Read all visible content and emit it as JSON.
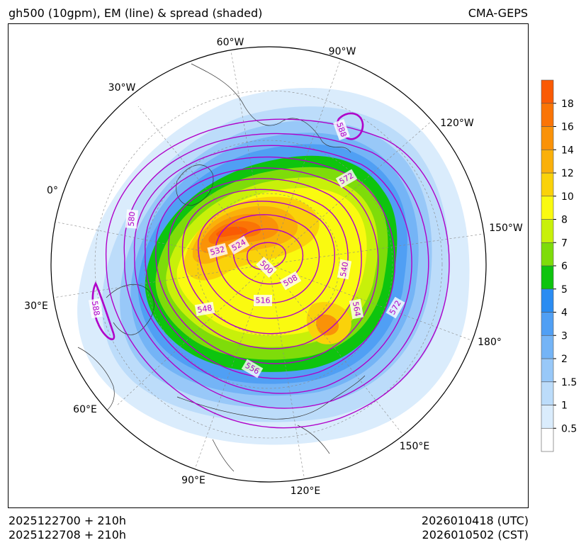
{
  "header": {
    "title_left": "gh500 (10gpm), EM (line) & spread (shaded)",
    "title_right": "CMA-GEPS"
  },
  "footer": {
    "init_utc": "2025122700 + 210h",
    "init_cst": "2025122708 + 210h",
    "valid_utc": "2026010418 (UTC)",
    "valid_cst": "2026010502 (CST)"
  },
  "map": {
    "projection": "north-polar-stereographic",
    "longitude_labels": [
      {
        "text": "60°W",
        "lon": -60
      },
      {
        "text": "90°W",
        "lon": -90
      },
      {
        "text": "30°W",
        "lon": -30
      },
      {
        "text": "120°W",
        "lon": -120
      },
      {
        "text": "0°",
        "lon": 0
      },
      {
        "text": "150°W",
        "lon": -150
      },
      {
        "text": "30°E",
        "lon": 30
      },
      {
        "text": "180°",
        "lon": 180
      },
      {
        "text": "60°E",
        "lon": 60
      },
      {
        "text": "150°E",
        "lon": 150
      },
      {
        "text": "90°E",
        "lon": 90
      },
      {
        "text": "120°E",
        "lon": 120
      }
    ],
    "contour_labels": [
      "588",
      "572",
      "580",
      "532",
      "524",
      "500",
      "508",
      "540",
      "588",
      "516",
      "548",
      "564",
      "572",
      "556"
    ],
    "contour_color": "#b000c8",
    "land_outline_color": "#333333"
  },
  "colorbar": {
    "ticks": [
      "0.5",
      "1",
      "1.5",
      "2",
      "3",
      "4",
      "5",
      "6",
      "7",
      "8",
      "10",
      "12",
      "14",
      "16",
      "18"
    ],
    "colors": [
      "#ffffff",
      "#daecfc",
      "#bcdcfa",
      "#98c8f8",
      "#74b4f6",
      "#509ff4",
      "#2a8cf2",
      "#0ec40e",
      "#7edc0a",
      "#c8f00a",
      "#fafa10",
      "#fad20a",
      "#fab00a",
      "#fa9208",
      "#fa7406",
      "#fa5a04"
    ]
  }
}
